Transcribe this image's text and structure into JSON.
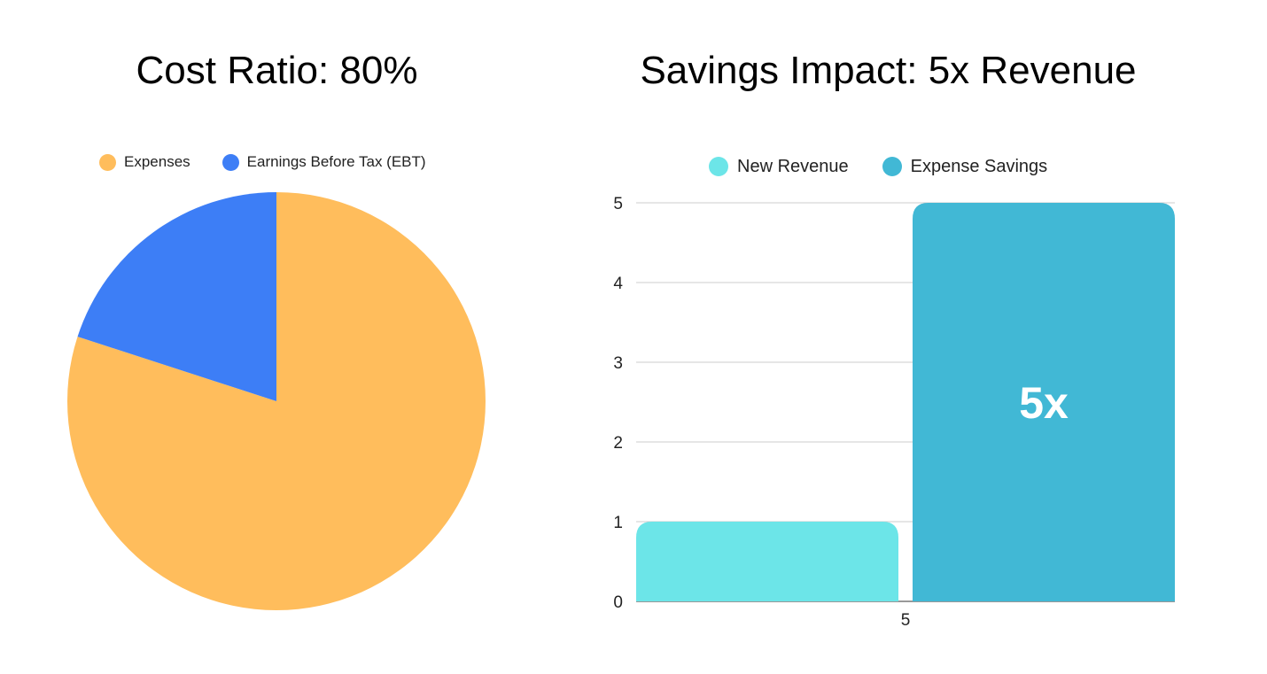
{
  "chart_data": [
    {
      "type": "pie",
      "title": "Cost Ratio: 80%",
      "legend_position": "top",
      "slices": [
        {
          "label": "Expenses",
          "value": 80,
          "color": "#FFBD5C"
        },
        {
          "label": "Earnings Before Tax (EBT)",
          "value": 20,
          "color": "#3D7EF6"
        }
      ]
    },
    {
      "type": "bar",
      "title": "Savings Impact: 5x Revenue",
      "legend_position": "top",
      "categories": [
        "5"
      ],
      "series": [
        {
          "name": "New Revenue",
          "values": [
            1
          ],
          "color": "#6CE5E8",
          "data_label": ""
        },
        {
          "name": "Expense Savings",
          "values": [
            5
          ],
          "color": "#41B8D5",
          "data_label": "5x"
        }
      ],
      "xlabel": "",
      "ylabel": "",
      "ylim": [
        0,
        5
      ],
      "yticks": [
        "0",
        "1",
        "2",
        "3",
        "4",
        "5"
      ],
      "grid": true
    }
  ]
}
